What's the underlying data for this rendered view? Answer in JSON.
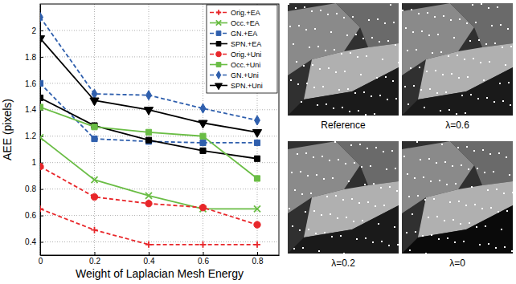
{
  "chart_data": {
    "type": "line",
    "x_label": "Weight of Laplacian Mesh Energy",
    "y_label": "AEE (pixels)",
    "x": [
      0,
      0.2,
      0.4,
      0.6,
      0.8
    ],
    "xlim": [
      0,
      0.88
    ],
    "xticks": [
      0,
      0.2,
      0.4,
      0.6,
      0.8
    ],
    "ylim": [
      0.3,
      2.2
    ],
    "yticks": [
      0.4,
      0.6,
      0.8,
      1,
      1.2,
      1.4,
      1.6,
      1.8,
      2
    ],
    "grid": true,
    "legend": "upper right",
    "series": [
      {
        "name": "Orig.+EA",
        "color": "#e8262a",
        "line_style": "dashed",
        "marker": "plus",
        "values": [
          0.65,
          0.49,
          0.38,
          0.38,
          0.38
        ]
      },
      {
        "name": "Occ.+EA",
        "color": "#6abd45",
        "line_style": "solid",
        "marker": "x",
        "values": [
          1.19,
          0.87,
          0.75,
          0.65,
          0.65
        ]
      },
      {
        "name": "GN.+EA",
        "color": "#2f5fad",
        "line_style": "dashed",
        "marker": "square",
        "values": [
          1.6,
          1.18,
          1.16,
          1.15,
          1.15
        ]
      },
      {
        "name": "SPN.+EA",
        "color": "#000000",
        "line_style": "solid",
        "marker": "square",
        "values": [
          1.49,
          1.28,
          1.17,
          1.09,
          1.03
        ]
      },
      {
        "name": "Orig.+Uni",
        "color": "#e8262a",
        "line_style": "dashed",
        "marker": "circle",
        "values": [
          0.97,
          0.74,
          0.69,
          0.66,
          0.53
        ]
      },
      {
        "name": "Occ.+Uni",
        "color": "#6abd45",
        "line_style": "solid",
        "marker": "square",
        "values": [
          1.42,
          1.27,
          1.23,
          1.2,
          0.88
        ]
      },
      {
        "name": "GN.+Uni",
        "color": "#2f5fad",
        "line_style": "dashed",
        "marker": "diamond",
        "values": [
          2.1,
          1.52,
          1.51,
          1.41,
          1.32
        ]
      },
      {
        "name": "SPN.+Uni",
        "color": "#000000",
        "line_style": "solid",
        "marker": "triangle-down",
        "values": [
          1.94,
          1.47,
          1.4,
          1.3,
          1.23
        ]
      }
    ]
  },
  "images": [
    {
      "caption": "Reference"
    },
    {
      "caption": "λ=0.6"
    },
    {
      "caption": "λ=0.2"
    },
    {
      "caption": "λ=0"
    }
  ]
}
